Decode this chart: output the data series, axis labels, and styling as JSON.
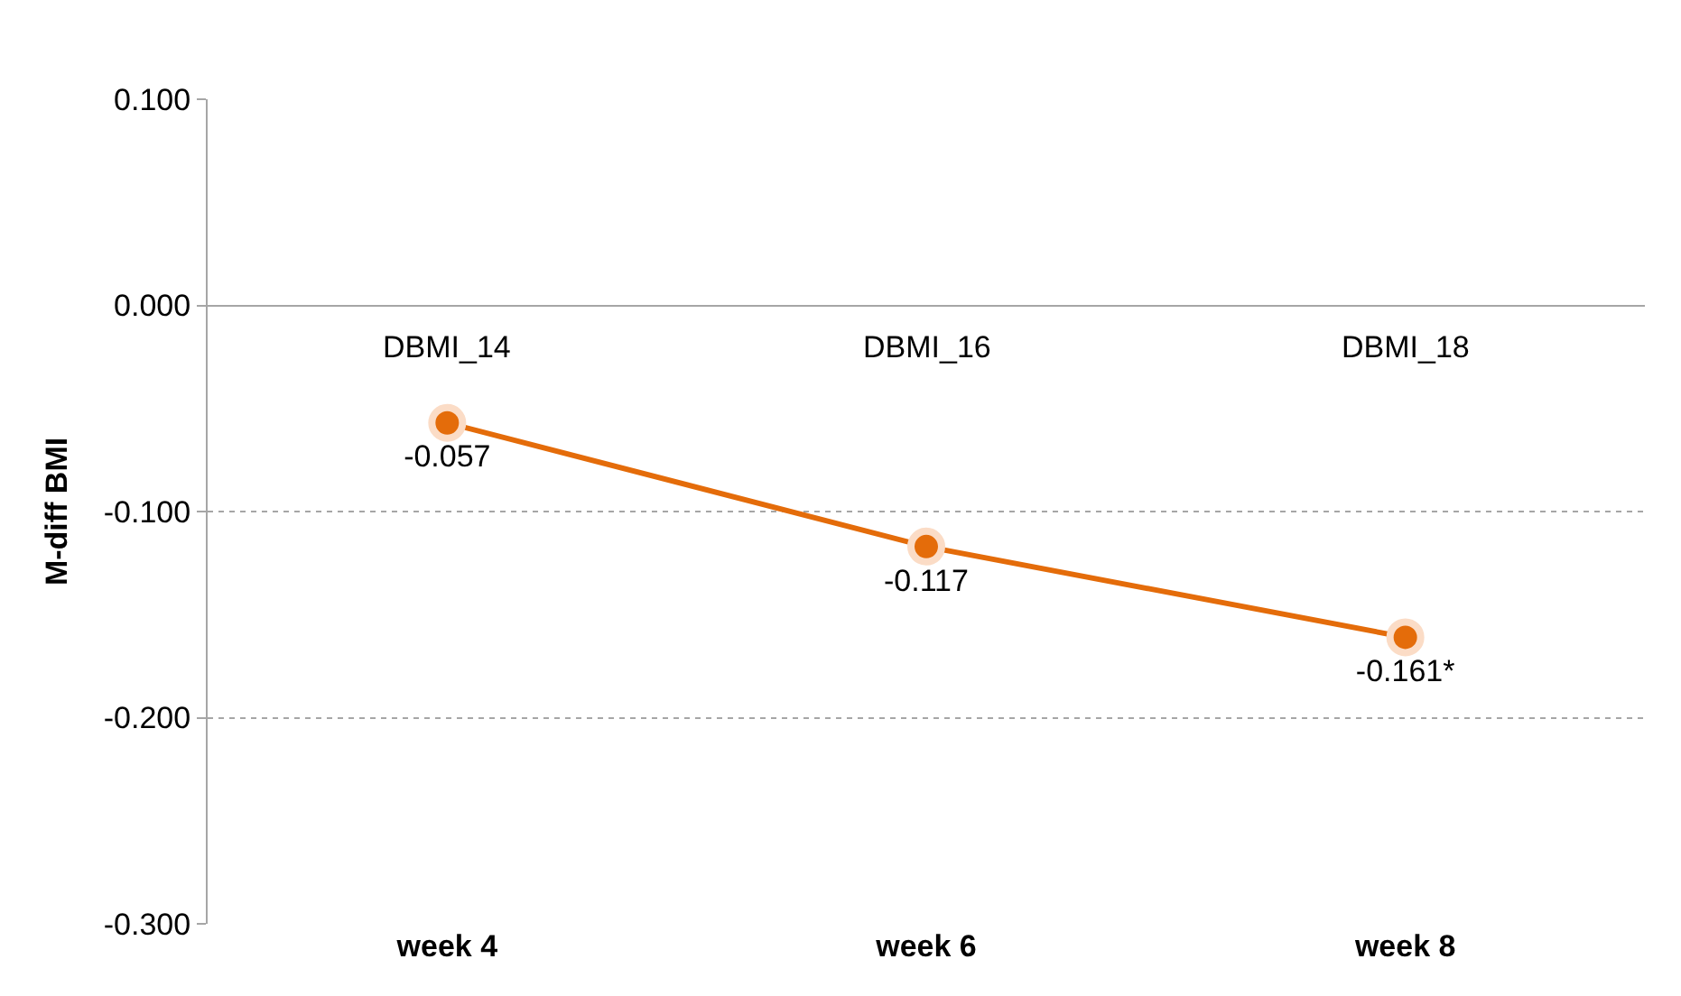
{
  "chart_data": {
    "type": "line",
    "ylabel": "M-diff BMI",
    "categories": [
      "week 4",
      "week 6",
      "week 8"
    ],
    "series": [
      {
        "color": "#e46c0a",
        "values": [
          -0.057,
          -0.117,
          -0.161
        ],
        "value_labels": [
          "-0.057",
          "-0.117",
          "-0.161*"
        ]
      }
    ],
    "ylim": [
      -0.3,
      0.1
    ],
    "yticks": [
      {
        "value": -0.3,
        "label": "-0.300"
      },
      {
        "value": -0.2,
        "label": "-0.200"
      },
      {
        "value": -0.1,
        "label": "-0.100"
      },
      {
        "value": 0,
        "label": "0.000"
      },
      {
        "value": 0.1,
        "label": "0.100"
      }
    ],
    "annotations": [
      "DBMI_14",
      "DBMI_16",
      "DBMI_18"
    ],
    "grid": "y",
    "marker": "circle",
    "line_style": "solid"
  }
}
